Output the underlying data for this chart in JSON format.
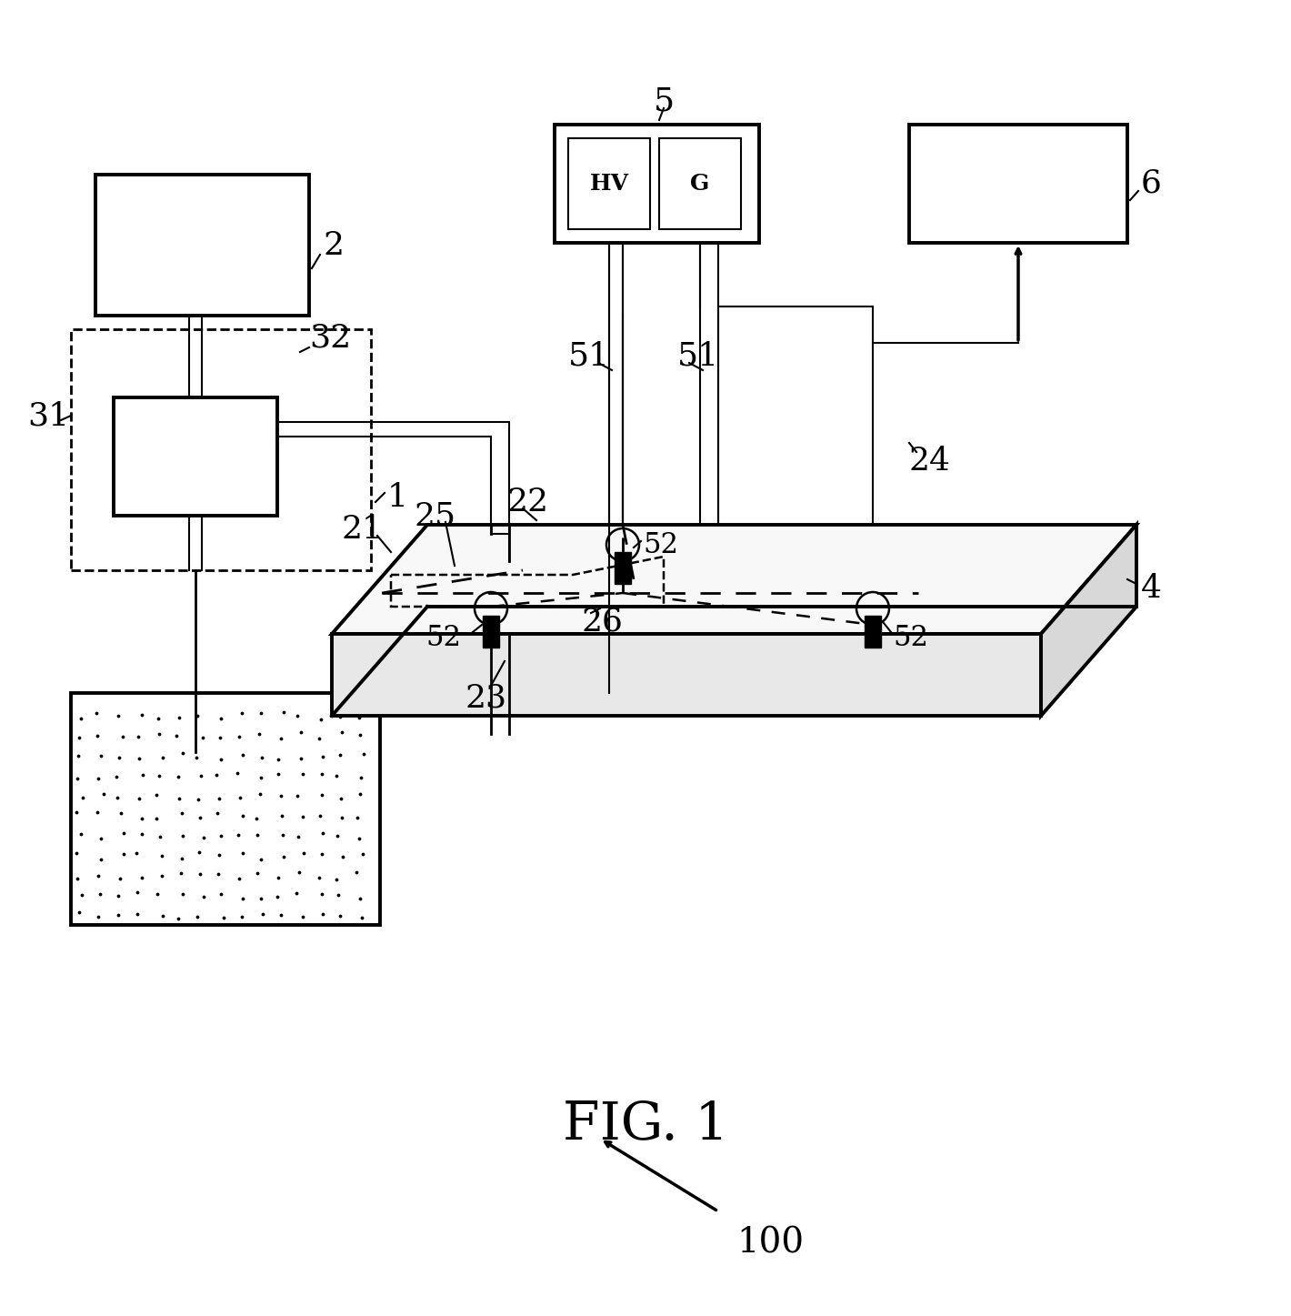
{
  "bg_color": "#ffffff",
  "fig_label": "FIG. 1",
  "ref_100": "100",
  "figsize": [
    14.2,
    14.47
  ],
  "dpi": 100
}
